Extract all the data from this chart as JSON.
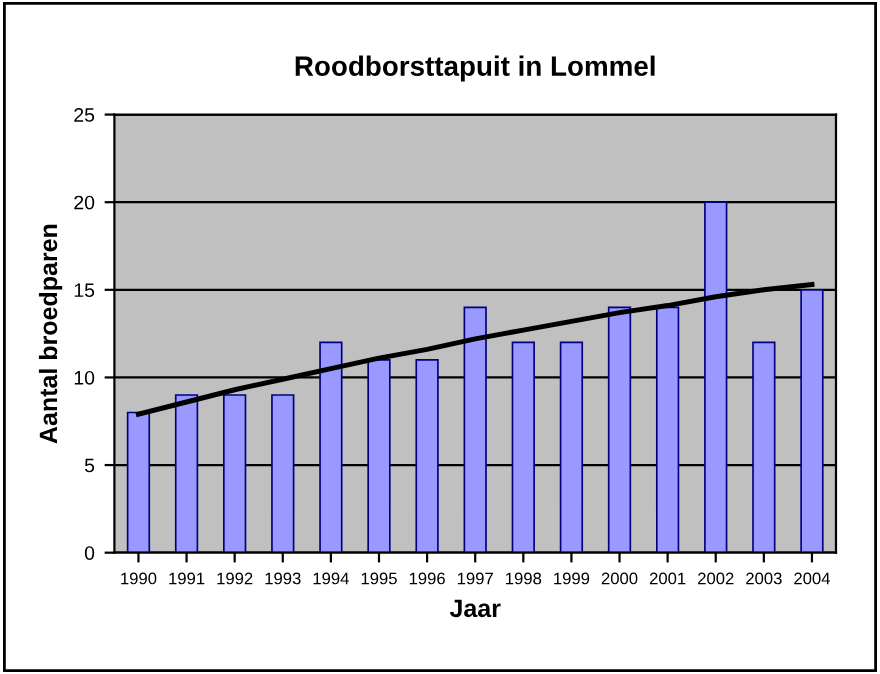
{
  "chart_data": {
    "type": "bar",
    "title": "Roodborsttapuit in Lommel",
    "xlabel": "Jaar",
    "ylabel": "Aantal broedparen",
    "categories": [
      "1990",
      "1991",
      "1992",
      "1993",
      "1994",
      "1995",
      "1996",
      "1997",
      "1998",
      "1999",
      "2000",
      "2001",
      "2002",
      "2003",
      "2004"
    ],
    "series": [
      {
        "color": "#9999ff",
        "values": [
          8,
          9,
          9,
          9,
          12,
          11,
          11,
          14,
          12,
          12,
          14,
          14,
          20,
          12,
          15
        ]
      },
      {
        "type": "line",
        "color": "#000000",
        "values": [
          7.9,
          8.6,
          9.3,
          9.9,
          10.5,
          11.1,
          11.6,
          12.2,
          12.7,
          13.2,
          13.7,
          14.1,
          14.6,
          15.0,
          15.3
        ]
      }
    ],
    "ylim": [
      0,
      25
    ],
    "yticks": [
      0,
      5,
      10,
      15,
      20,
      25
    ],
    "grid": "y",
    "legend": false
  }
}
